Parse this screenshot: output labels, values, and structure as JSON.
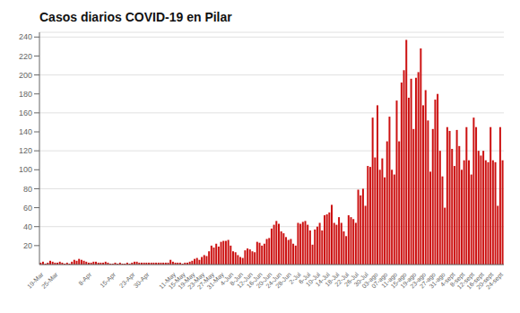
{
  "chart_data": {
    "type": "bar",
    "title": "Casos diarios COVID-19 en Pilar",
    "color": "#cc1111",
    "ylim": [
      0,
      245
    ],
    "yticks": [
      20,
      40,
      60,
      80,
      100,
      120,
      140,
      160,
      180,
      200,
      220,
      240
    ],
    "grid": true,
    "categories": [
      "19-Mar",
      null,
      null,
      null,
      null,
      null,
      "25-Mar",
      null,
      null,
      null,
      null,
      null,
      null,
      null,
      null,
      null,
      null,
      null,
      null,
      null,
      "8-Apr",
      null,
      null,
      null,
      null,
      null,
      null,
      null,
      null,
      null,
      "15-Apr",
      null,
      null,
      null,
      null,
      null,
      null,
      null,
      "23-Apr",
      null,
      null,
      null,
      null,
      null,
      "30-Apr",
      null,
      null,
      null,
      null,
      null,
      null,
      null,
      null,
      null,
      null,
      "11-May",
      null,
      null,
      null,
      "15-May",
      null,
      null,
      null,
      "19-May",
      null,
      null,
      null,
      "23-May",
      null,
      null,
      null,
      "27-May",
      null,
      null,
      null,
      "31-May",
      null,
      null,
      null,
      "4-Jun",
      null,
      null,
      null,
      "8-Jun",
      null,
      null,
      null,
      "12-Jun",
      null,
      null,
      null,
      "16-Jun",
      null,
      null,
      null,
      "20-Jun",
      null,
      null,
      null,
      "24-Jun",
      null,
      null,
      null,
      "28-Jun",
      null,
      null,
      null,
      "2-Jul",
      null,
      null,
      null,
      "6-Jul",
      null,
      null,
      null,
      "10-Jul",
      null,
      null,
      null,
      "14-Jul",
      null,
      null,
      null,
      "18-Jul",
      null,
      null,
      null,
      "22-Jul",
      null,
      null,
      null,
      "26-Jul",
      null,
      null,
      null,
      "30-Jul",
      null,
      null,
      null,
      "03-ago",
      null,
      null,
      null,
      "07-ago",
      null,
      null,
      null,
      "11-ago",
      null,
      null,
      null,
      "15-ago",
      null,
      null,
      null,
      "19-ago",
      null,
      null,
      null,
      "23-ago",
      null,
      null,
      null,
      "27-ago",
      null,
      null,
      null,
      "31-ago",
      null,
      null,
      null,
      "4-sept",
      null,
      null,
      null,
      "8-sept",
      null,
      null,
      null,
      "12-sept",
      null,
      null,
      null,
      "16-sept",
      null,
      null,
      null,
      "20-sept",
      null,
      null,
      null,
      "24-sept",
      null
    ],
    "values": [
      2,
      3,
      1,
      2,
      4,
      3,
      2,
      2,
      3,
      2,
      1,
      2,
      1,
      3,
      5,
      4,
      6,
      5,
      4,
      3,
      2,
      2,
      3,
      3,
      2,
      2,
      2,
      3,
      2,
      1,
      1,
      2,
      1,
      2,
      1,
      1,
      2,
      1,
      2,
      3,
      3,
      2,
      2,
      2,
      2,
      2,
      2,
      2,
      2,
      2,
      2,
      2,
      2,
      2,
      5,
      3,
      2,
      2,
      2,
      1,
      2,
      2,
      3,
      4,
      6,
      7,
      5,
      8,
      10,
      9,
      14,
      20,
      18,
      22,
      19,
      24,
      25,
      25,
      26,
      20,
      14,
      13,
      10,
      8,
      7,
      15,
      17,
      16,
      14,
      13,
      24,
      23,
      20,
      22,
      27,
      28,
      38,
      42,
      46,
      43,
      35,
      33,
      29,
      26,
      27,
      22,
      20,
      44,
      43,
      45,
      46,
      42,
      36,
      21,
      37,
      40,
      44,
      36,
      52,
      53,
      55,
      63,
      44,
      42,
      50,
      44,
      35,
      30,
      52,
      50,
      48,
      44,
      79,
      73,
      80,
      62,
      104,
      103,
      155,
      113,
      168,
      100,
      112,
      92,
      130,
      156,
      100,
      95,
      173,
      130,
      192,
      205,
      237,
      176,
      196,
      143,
      197,
      203,
      228,
      168,
      184,
      152,
      98,
      143,
      174,
      180,
      120,
      93,
      60,
      145,
      141,
      122,
      104,
      142,
      125,
      100,
      110,
      145,
      110,
      95,
      155,
      145,
      120,
      115,
      120,
      110,
      108,
      145,
      110,
      108,
      62,
      145,
      110
    ]
  }
}
